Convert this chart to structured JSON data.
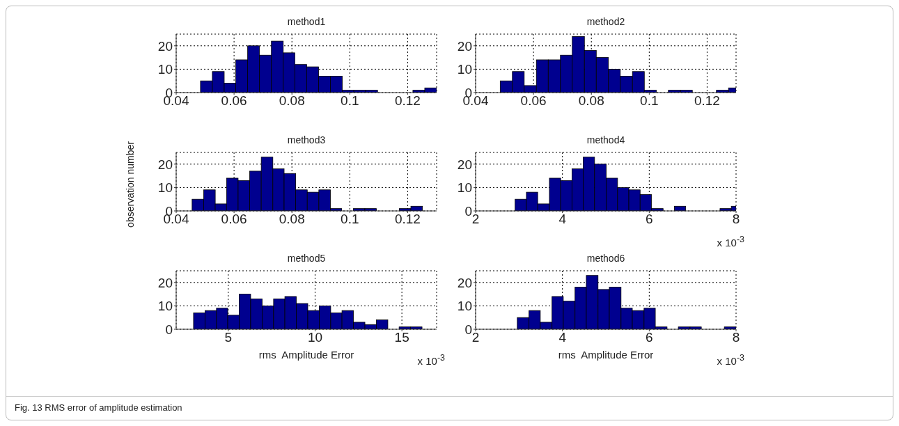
{
  "chart_data": [
    {
      "type": "histogram",
      "title": "method1",
      "bins": [
        0.0484,
        0.0525,
        0.0566,
        0.0606,
        0.0647,
        0.0688,
        0.0729,
        0.077,
        0.081,
        0.0851,
        0.0892,
        0.0933,
        0.0974,
        0.1014,
        0.1055,
        0.1096,
        0.1218,
        0.1259,
        0.13
      ],
      "values": [
        5,
        9,
        4,
        14,
        20,
        16,
        22,
        17,
        12,
        11,
        7,
        7,
        1,
        1,
        1,
        0,
        1,
        2
      ],
      "color": "#00008f",
      "xlim": [
        0.04,
        0.13
      ],
      "xticks": [
        0.04,
        0.06,
        0.08,
        0.1,
        0.12
      ],
      "ylim": [
        0,
        25
      ],
      "yticks": [
        0,
        10,
        20
      ],
      "grid": true
    },
    {
      "type": "histogram",
      "title": "method2",
      "bins": [
        0.0485,
        0.0527,
        0.0568,
        0.061,
        0.0651,
        0.0693,
        0.0734,
        0.0776,
        0.0817,
        0.0859,
        0.09,
        0.0942,
        0.0983,
        0.1025,
        0.1066,
        0.1108,
        0.1149,
        0.1232,
        0.1274,
        0.13
      ],
      "values": [
        5,
        9,
        3,
        14,
        14,
        16,
        24,
        18,
        15,
        10,
        7,
        9,
        1,
        0,
        1,
        1,
        0,
        1,
        2
      ],
      "color": "#00008f",
      "xlim": [
        0.04,
        0.13
      ],
      "xticks": [
        0.04,
        0.06,
        0.08,
        0.1,
        0.12
      ],
      "ylim": [
        0,
        25
      ],
      "yticks": [
        0,
        10,
        20
      ],
      "grid": true
    },
    {
      "type": "histogram",
      "title": "method3",
      "ylabel": "observation number",
      "bins": [
        0.0455,
        0.0495,
        0.0535,
        0.0574,
        0.0614,
        0.0654,
        0.0694,
        0.0734,
        0.0773,
        0.0813,
        0.0853,
        0.0893,
        0.0933,
        0.0972,
        0.1012,
        0.1052,
        0.1092,
        0.1171,
        0.1211,
        0.1251
      ],
      "values": [
        5,
        9,
        3,
        14,
        13,
        17,
        23,
        18,
        16,
        9,
        8,
        9,
        1,
        0,
        1,
        1,
        0,
        1,
        2
      ],
      "color": "#00008f",
      "xlim": [
        0.04,
        0.13
      ],
      "xticks": [
        0.04,
        0.06,
        0.08,
        0.1,
        0.12
      ],
      "ylim": [
        0,
        25
      ],
      "yticks": [
        0,
        10,
        20
      ],
      "grid": true
    },
    {
      "type": "histogram",
      "title": "method4",
      "annotations": [
        "x 10$^{-3}$"
      ],
      "bins": [
        2.91,
        3.17,
        3.43,
        3.7,
        3.96,
        4.22,
        4.48,
        4.74,
        5.01,
        5.27,
        5.53,
        5.79,
        6.05,
        6.32,
        6.58,
        6.84,
        7.63,
        7.89,
        8
      ],
      "values": [
        5,
        8,
        3,
        14,
        13,
        18,
        23,
        20,
        14,
        10,
        9,
        7,
        1,
        0,
        2,
        0,
        1,
        2
      ],
      "color": "#00008f",
      "xlim": [
        2,
        8
      ],
      "xticks": [
        2,
        4,
        6,
        8
      ],
      "ylim": [
        0,
        25
      ],
      "yticks": [
        0,
        10,
        20
      ],
      "grid": true
    },
    {
      "type": "histogram",
      "title": "method5",
      "xlabel": "rms  Amplitude Error",
      "annotations": [
        "x 10$^{-3}$",
        "Fig. 13 RMS error of amplitude estimation"
      ],
      "bins": [
        3.0,
        3.66,
        4.32,
        4.97,
        5.63,
        6.29,
        6.95,
        7.61,
        8.26,
        8.92,
        9.58,
        10.24,
        10.9,
        11.55,
        12.21,
        12.87,
        13.53,
        14.19,
        14.84,
        15.5,
        16.16
      ],
      "values": [
        7,
        8,
        9,
        6,
        15,
        13,
        10,
        13,
        14,
        11,
        8,
        10,
        7,
        8,
        3,
        2,
        4,
        0,
        1,
        1
      ],
      "color": "#00008f",
      "xlim": [
        2,
        17
      ],
      "xticks": [
        5,
        10,
        15
      ],
      "ylim": [
        0,
        25
      ],
      "yticks": [
        0,
        10,
        20
      ],
      "grid": true
    },
    {
      "type": "histogram",
      "title": "method6",
      "xlabel": "rms  Amplitude Error",
      "annotations": [
        "x 10$^{-3}$"
      ],
      "bins": [
        2.96,
        3.23,
        3.49,
        3.76,
        4.02,
        4.29,
        4.55,
        4.82,
        5.08,
        5.35,
        5.61,
        5.88,
        6.14,
        6.41,
        6.67,
        6.94,
        7.2,
        7.73,
        8
      ],
      "values": [
        5,
        8,
        3,
        14,
        12,
        18,
        23,
        17,
        18,
        9,
        8,
        9,
        1,
        0,
        1,
        1,
        0,
        1
      ],
      "color": "#00008f",
      "xlim": [
        2,
        8
      ],
      "xticks": [
        2,
        4,
        6,
        8
      ],
      "ylim": [
        0,
        25
      ],
      "yticks": [
        0,
        10,
        20
      ],
      "grid": true
    }
  ]
}
